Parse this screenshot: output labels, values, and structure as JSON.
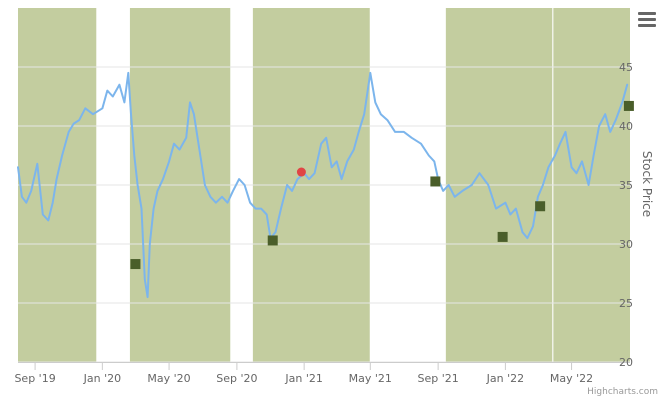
{
  "chart_data": {
    "type": "line",
    "title": "",
    "xlabel": "",
    "ylabel": "Stock Price",
    "x_tick_labels": [
      "Sep '19",
      "Jan '20",
      "May '20",
      "Sep '20",
      "Jan '21",
      "May '21",
      "Sep '21",
      "Jan '22",
      "May '22"
    ],
    "x_tick_dates": [
      "2019-09-01",
      "2020-01-01",
      "2020-05-01",
      "2020-09-01",
      "2021-01-01",
      "2021-05-01",
      "2021-09-01",
      "2022-01-01",
      "2022-05-01"
    ],
    "xlim": [
      "2019-08-01",
      "2022-08-15"
    ],
    "y_tick_labels": [
      "20",
      "25",
      "30",
      "35",
      "40",
      "45"
    ],
    "ylim": [
      20,
      50
    ],
    "grid": true,
    "legend": "none",
    "series": [
      {
        "values_x": [
          "2019-08-01",
          "2019-08-08",
          "2019-08-16",
          "2019-08-25",
          "2019-09-05",
          "2019-09-15",
          "2019-09-25",
          "2019-10-03",
          "2019-10-10",
          "2019-10-20",
          "2019-11-01",
          "2019-11-10",
          "2019-11-20",
          "2019-12-01",
          "2019-12-15",
          "2020-01-01",
          "2020-01-10",
          "2020-01-20",
          "2020-02-01",
          "2020-02-10",
          "2020-02-17",
          "2020-02-22",
          "2020-02-28",
          "2020-03-05",
          "2020-03-12",
          "2020-03-18",
          "2020-03-23",
          "2020-03-27",
          "2020-04-03",
          "2020-04-10",
          "2020-04-20",
          "2020-05-01",
          "2020-05-10",
          "2020-05-20",
          "2020-06-01",
          "2020-06-08",
          "2020-06-15",
          "2020-06-25",
          "2020-07-05",
          "2020-07-15",
          "2020-07-25",
          "2020-08-05",
          "2020-08-15",
          "2020-08-25",
          "2020-09-05",
          "2020-09-15",
          "2020-09-25",
          "2020-10-05",
          "2020-10-15",
          "2020-10-25",
          "2020-11-01",
          "2020-11-10",
          "2020-11-20",
          "2020-12-01",
          "2020-12-10",
          "2020-12-20",
          "2021-01-01",
          "2021-01-10",
          "2021-01-20",
          "2021-02-01",
          "2021-02-10",
          "2021-02-20",
          "2021-03-01",
          "2021-03-10",
          "2021-03-20",
          "2021-04-01",
          "2021-04-10",
          "2021-04-20",
          "2021-05-01",
          "2021-05-10",
          "2021-05-20",
          "2021-06-01",
          "2021-06-15",
          "2021-07-01",
          "2021-07-15",
          "2021-08-01",
          "2021-08-15",
          "2021-08-25",
          "2021-09-01",
          "2021-09-10",
          "2021-09-20",
          "2021-10-01",
          "2021-10-15",
          "2021-11-01",
          "2021-11-15",
          "2021-12-01",
          "2021-12-15",
          "2022-01-01",
          "2022-01-10",
          "2022-01-20",
          "2022-02-01",
          "2022-02-10",
          "2022-02-20",
          "2022-03-01",
          "2022-03-10",
          "2022-03-20",
          "2022-04-01",
          "2022-04-10",
          "2022-04-20",
          "2022-05-01",
          "2022-05-10",
          "2022-05-20",
          "2022-06-01",
          "2022-06-10",
          "2022-06-20",
          "2022-07-01",
          "2022-07-10",
          "2022-07-20",
          "2022-08-01",
          "2022-08-10"
        ],
        "values": [
          36.5,
          34.0,
          33.5,
          34.5,
          36.8,
          32.5,
          32.0,
          33.5,
          35.5,
          37.5,
          39.5,
          40.2,
          40.5,
          41.5,
          41.0,
          41.5,
          43.0,
          42.5,
          43.5,
          42.0,
          44.5,
          41.0,
          37.5,
          35.0,
          33.0,
          27.0,
          25.5,
          30.0,
          33.0,
          34.5,
          35.5,
          37.0,
          38.5,
          38.0,
          39.0,
          42.0,
          41.0,
          38.0,
          35.0,
          34.0,
          33.5,
          34.0,
          33.5,
          34.5,
          35.5,
          35.0,
          33.5,
          33.0,
          33.0,
          32.5,
          30.5,
          31.0,
          33.0,
          35.0,
          34.5,
          35.5,
          36.0,
          35.5,
          36.0,
          38.5,
          39.0,
          36.5,
          37.0,
          35.5,
          37.0,
          38.0,
          39.5,
          41.0,
          44.5,
          42.0,
          41.0,
          40.5,
          39.5,
          39.5,
          39.0,
          38.5,
          37.5,
          37.0,
          35.5,
          34.5,
          35.0,
          34.0,
          34.5,
          35.0,
          36.0,
          35.0,
          33.0,
          33.5,
          32.5,
          33.0,
          31.0,
          30.5,
          31.5,
          34.0,
          35.0,
          36.5,
          37.5,
          38.5,
          39.5,
          36.5,
          36.0,
          37.0,
          35.0,
          37.5,
          40.0,
          41.0,
          39.5,
          40.5,
          42.0,
          43.5
        ]
      }
    ],
    "shaded_bands": [
      {
        "from": "2019-08-01",
        "to": "2019-12-21"
      },
      {
        "from": "2020-02-20",
        "to": "2020-08-20"
      },
      {
        "from": "2020-09-30",
        "to": "2021-04-30"
      },
      {
        "from": "2021-09-15",
        "to": "2022-03-27"
      },
      {
        "from": "2022-03-29",
        "to": "2022-08-15"
      }
    ],
    "square_markers": [
      {
        "x": "2020-03-01",
        "y": 28.3
      },
      {
        "x": "2020-11-05",
        "y": 30.3
      },
      {
        "x": "2021-08-27",
        "y": 35.3
      },
      {
        "x": "2021-12-27",
        "y": 30.6
      },
      {
        "x": "2022-03-05",
        "y": 33.2
      },
      {
        "x": "2022-08-13",
        "y": 41.7
      }
    ],
    "circle_markers": [
      {
        "x": "2020-12-27",
        "y": 36.1
      }
    ],
    "colors": {
      "band": "#c3cd9f",
      "line": "#7cb5ec",
      "square_marker": "#4a5e2a",
      "circle_marker": "#e04545",
      "grid": "#e6e6e6",
      "axis": "#cccccc"
    }
  },
  "credits": "Highcharts.com",
  "menu": {
    "icon": "hamburger-menu-icon"
  }
}
